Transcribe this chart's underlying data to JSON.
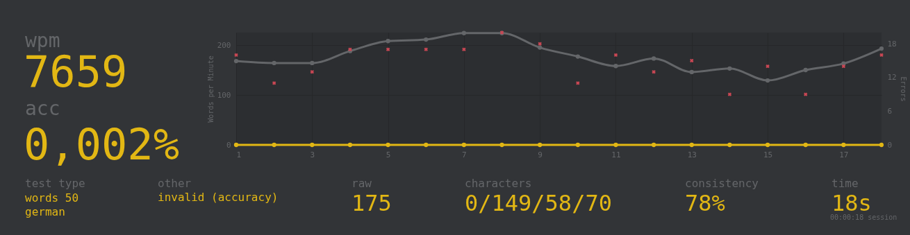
{
  "chart_data": [
    {
      "type": "other",
      "annotations": [
        "wpm",
        "7659",
        "acc",
        "0,002%",
        "test type",
        "words 50",
        "german",
        "other",
        "invalid (accuracy)",
        "raw",
        "175",
        "characters",
        "0/149/58/70",
        "consistency",
        "78%",
        "time",
        "18s",
        "00:00:18 session"
      ]
    },
    {
      "type": "line",
      "ylabel": "Words per Minute",
      "y2label": "Errors",
      "x": [
        1,
        2,
        3,
        4,
        5,
        6,
        7,
        8,
        9,
        10,
        11,
        12,
        13,
        14,
        15,
        16,
        17,
        18
      ],
      "series": [
        {
          "color": "#646669",
          "marker": "circle",
          "values": [
            168,
            164,
            164,
            188,
            208,
            211,
            224,
            224,
            195,
            177,
            158,
            173,
            146,
            153,
            129,
            150,
            163,
            193
          ]
        },
        {
          "color": "#e2b714",
          "marker": "circle",
          "values": [
            0,
            0,
            0,
            0,
            0,
            0,
            0,
            0,
            0,
            0,
            0,
            0,
            0,
            0,
            0,
            0,
            0,
            0
          ]
        },
        {
          "type": "scatter",
          "axis": "y2",
          "color": "#ca4754",
          "marker": "cross",
          "values": [
            16,
            11,
            13,
            17,
            17,
            17,
            17,
            20,
            18,
            11,
            16,
            13,
            15,
            9,
            14,
            9,
            14,
            16
          ]
        }
      ],
      "xlim": [
        1,
        18
      ],
      "xticks": [
        1,
        3,
        5,
        7,
        9,
        11,
        13,
        15,
        17
      ],
      "ylim": [
        0,
        225
      ],
      "yticks": [
        0,
        100,
        200
      ],
      "y2lim": [
        0,
        20
      ],
      "y2ticks": [
        0,
        6,
        12,
        18
      ],
      "grid": true
    }
  ]
}
